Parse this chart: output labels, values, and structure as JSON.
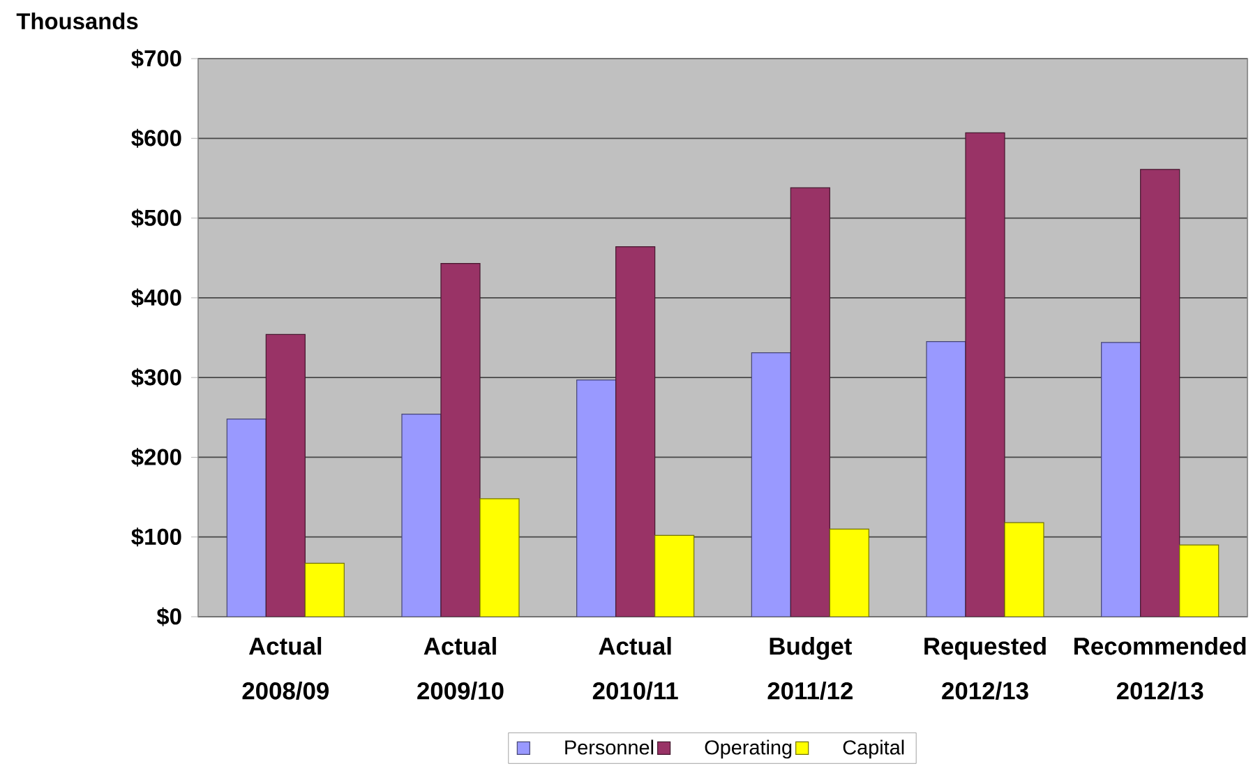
{
  "chart_data": {
    "type": "bar",
    "ylabel": "Thousands",
    "categories": [
      "Actual 2008/09",
      "Actual 2009/10",
      "Actual 2010/11",
      "Budget 2011/12",
      "Requested 2012/13",
      "Recommended 2012/13"
    ],
    "series": [
      {
        "name": "Personnel",
        "color": "#9999ff",
        "values": [
          248,
          254,
          297,
          331,
          345,
          344
        ]
      },
      {
        "name": "Operating",
        "color": "#993366",
        "values": [
          354,
          443,
          464,
          538,
          607,
          561
        ]
      },
      {
        "name": "Capital",
        "color": "#ffff00",
        "values": [
          67,
          148,
          102,
          110,
          118,
          90
        ]
      }
    ],
    "ylim": [
      0,
      700
    ],
    "yticks": [
      {
        "value": 0,
        "label": "$0"
      },
      {
        "value": 100,
        "label": "$100"
      },
      {
        "value": 200,
        "label": "$200"
      },
      {
        "value": 300,
        "label": "$300"
      },
      {
        "value": 400,
        "label": "$400"
      },
      {
        "value": 500,
        "label": "$500"
      },
      {
        "value": 600,
        "label": "$600"
      },
      {
        "value": 700,
        "label": "$700"
      }
    ],
    "grid": "y",
    "legend": "bottom"
  }
}
